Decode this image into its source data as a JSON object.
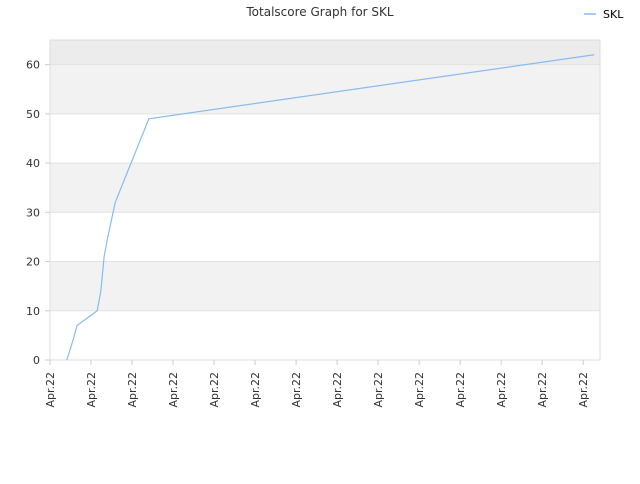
{
  "chart_data": {
    "type": "line",
    "title": "Totalscore Graph for SKL",
    "x": [
      0.41,
      0.56,
      0.66,
      1.15,
      1.24,
      1.32,
      1.41,
      1.59,
      2.41,
      13.27
    ],
    "series": [
      {
        "name": "SKL",
        "color": "#88bbee",
        "values": [
          0,
          4,
          7,
          10,
          14,
          21,
          25,
          32,
          49,
          62
        ]
      }
    ],
    "xlim": [
      0,
      13.41
    ],
    "xticks": [
      {
        "value": 0,
        "label": "Apr.22"
      },
      {
        "value": 1,
        "label": "Apr.22"
      },
      {
        "value": 2,
        "label": "Apr.22"
      },
      {
        "value": 3,
        "label": "Apr.22"
      },
      {
        "value": 4,
        "label": "Apr.22"
      },
      {
        "value": 5,
        "label": "Apr.22"
      },
      {
        "value": 6,
        "label": "Apr.22"
      },
      {
        "value": 7,
        "label": "Apr.22"
      },
      {
        "value": 8,
        "label": "Apr.22"
      },
      {
        "value": 9,
        "label": "Apr.22"
      },
      {
        "value": 10,
        "label": "Apr.22"
      },
      {
        "value": 11,
        "label": "Apr.22"
      },
      {
        "value": 12,
        "label": "Apr.22"
      },
      {
        "value": 13,
        "label": "Apr.22"
      }
    ],
    "ylim": [
      0,
      65
    ],
    "yticks": [
      0,
      10,
      20,
      30,
      40,
      50,
      60
    ],
    "grid": true,
    "legend": "top-right"
  }
}
